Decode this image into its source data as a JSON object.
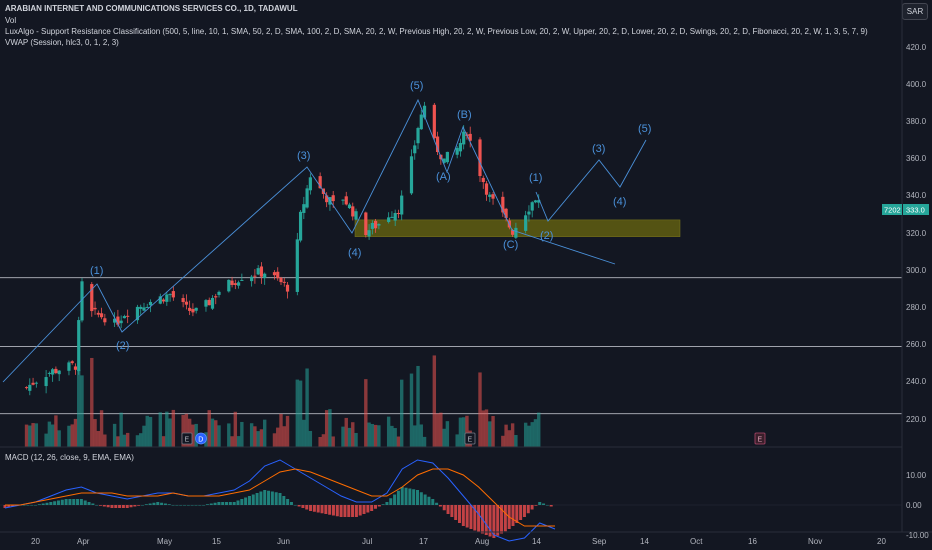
{
  "header": {
    "title": "ARABIAN INTERNET AND COMMUNICATIONS SERVICES CO., 1D, TADAWUL",
    "indicators": [
      "Vol",
      "LuxAlgo - Support Resistance Classification (500, 5, line, 10, 1, SMA, 50, 2, D, SMA, 100, 2, D, SMA, 20, 2, W, Previous High, 20, 2, W, Previous Low, 20, 2, W, Upper, 20, 2, D, Lower, 20, 2, D, Swings, 20, 2, D, Fibonacci, 20, 2, W, 1, 3, 5, 7, 9)",
      "VWAP (Session, hlc3, 0, 1, 2, 3)"
    ],
    "currency": "SAR"
  },
  "price_axis": {
    "ticks": [
      "420.0",
      "400.0",
      "380.0",
      "360.0",
      "340.0",
      "320.0",
      "300.0",
      "280.0",
      "260.0",
      "240.0",
      "220.0"
    ],
    "badge_left": "7202",
    "badge_right": "333.0"
  },
  "macd_panel": {
    "label": "MACD (12, 26, close, 9, EMA, EMA)",
    "ticks": [
      "10.00",
      "0.00",
      "-10.00"
    ]
  },
  "time_axis": {
    "labels": [
      "20",
      "Apr",
      "May",
      "15",
      "Jun",
      "Jul",
      "17",
      "Aug",
      "14",
      "Sep",
      "14",
      "Oct",
      "16",
      "Nov",
      "20"
    ]
  },
  "event_markers": [
    "E",
    "D",
    "E",
    "E"
  ],
  "wave_labels": [
    "(1)",
    "(2)",
    "(3)",
    "(4)",
    "(5)",
    "(B)",
    "(A)",
    "(C)",
    "(1)",
    "(2)",
    "(3)",
    "(4)",
    "(5)"
  ],
  "colors": {
    "background": "#131722",
    "bull": "#26a69a",
    "bear": "#ef5350",
    "wave": "#4a90d9",
    "support_zone": "#5c5a12",
    "level_lines": "#d1d4dc",
    "macd": "#2962ff",
    "signal": "#ff6d00"
  },
  "chart_data": [
    {
      "type": "candlestick",
      "title": "ARABIAN INTERNET AND COMMUNICATIONS SERVICES CO., 1D, TADAWUL",
      "ylim": [
        212,
        432
      ],
      "close_anchors": [
        [
          "Mar 15",
          238
        ],
        [
          "Mar 20",
          245
        ],
        [
          "Mar 25",
          248
        ],
        [
          "Mar 30",
          250
        ],
        [
          "Apr 1",
          293
        ],
        [
          "Apr 3",
          278
        ],
        [
          "Apr 8",
          276
        ],
        [
          "Apr 10",
          270
        ],
        [
          "Apr 14",
          278
        ],
        [
          "Apr 20",
          283
        ],
        [
          "Apr 28",
          288
        ],
        [
          "May 3",
          280
        ],
        [
          "May 7",
          278
        ],
        [
          "May 13",
          290
        ],
        [
          "May 20",
          298
        ],
        [
          "May 27",
          300
        ],
        [
          "Jun 3",
          292
        ],
        [
          "Jun 5",
          300
        ],
        [
          "Jun 7",
          330
        ],
        [
          "Jun 10",
          352
        ],
        [
          "Jun 14",
          342
        ],
        [
          "Jun 17",
          336
        ],
        [
          "Jun 20",
          340
        ],
        [
          "Jun 24",
          330
        ],
        [
          "Jun 27",
          322
        ],
        [
          "Jul 1",
          326
        ],
        [
          "Jul 3",
          330
        ],
        [
          "Jul 7",
          334
        ],
        [
          "Jul 10",
          350
        ],
        [
          "Jul 13",
          378
        ],
        [
          "Jul 15",
          390
        ],
        [
          "Jul 17",
          372
        ],
        [
          "Jul 21",
          360
        ],
        [
          "Jul 25",
          366
        ],
        [
          "Jul 28",
          376
        ],
        [
          "Jul 31",
          358
        ],
        [
          "Aug 4",
          340
        ],
        [
          "Aug 8",
          330
        ],
        [
          "Aug 11",
          322
        ],
        [
          "Aug 14",
          330
        ],
        [
          "Aug 18",
          340
        ],
        [
          "Aug 21",
          333
        ]
      ],
      "support_zone": [
        319,
        328
      ],
      "resistance_levels": [
        297,
        260,
        224
      ],
      "last_price": 333.0
    },
    {
      "type": "bar",
      "title": "Vol"
    },
    {
      "type": "line",
      "title": "MACD (12, 26, close, 9, EMA, EMA)",
      "ylim": [
        -16,
        18
      ],
      "series": [
        {
          "name": "MACD",
          "values": [
            -1,
            0,
            1,
            3,
            5,
            6,
            4,
            3,
            2,
            3,
            4,
            4,
            3,
            3,
            4,
            5,
            8,
            13,
            15,
            12,
            9,
            6,
            3,
            1,
            1,
            4,
            12,
            15,
            14,
            9,
            3,
            -3,
            -10,
            -12,
            -11,
            -6,
            -8
          ]
        },
        {
          "name": "Signal",
          "values": [
            0,
            0,
            1,
            2,
            3,
            4,
            4,
            4,
            3,
            3,
            3,
            4,
            3,
            3,
            3,
            4,
            5,
            8,
            11,
            12,
            11,
            9,
            7,
            5,
            3,
            3,
            6,
            10,
            12,
            12,
            10,
            6,
            1,
            -4,
            -7,
            -7,
            -7
          ]
        }
      ]
    }
  ]
}
